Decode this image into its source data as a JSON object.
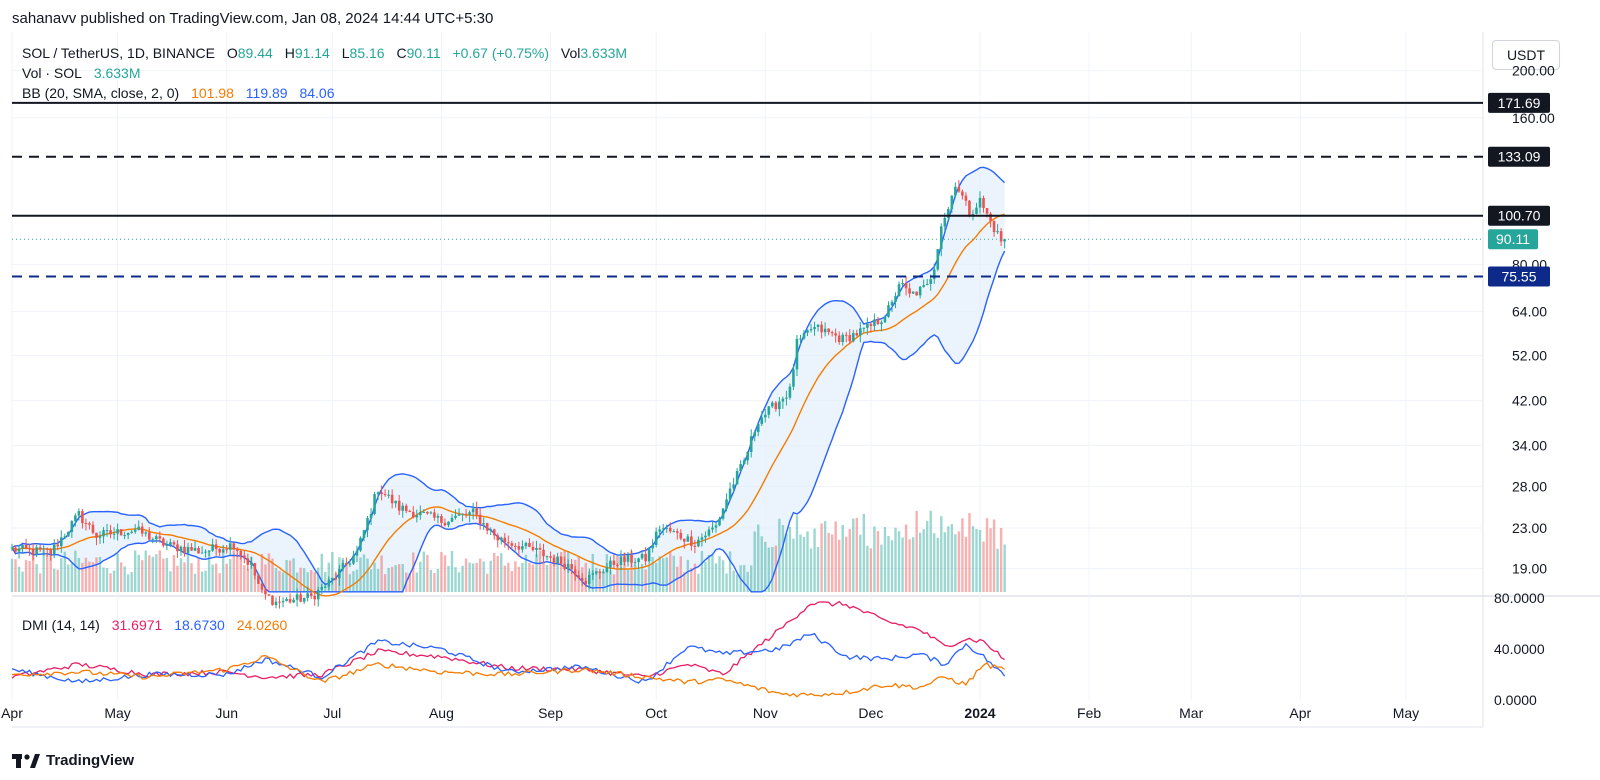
{
  "publisher": "sahanavv published on TradingView.com, Jan 08, 2024 14:44 UTC+5:30",
  "currency": "USDT",
  "footer_brand": "TradingView",
  "legend": {
    "symbol": "SOL / TetherUS, 1D, BINANCE",
    "o_label": "O",
    "o_value": "89.44",
    "h_label": "H",
    "h_value": "91.14",
    "l_label": "L",
    "l_value": "85.16",
    "c_label": "C",
    "c_value": "90.11",
    "change": "+0.67 (+0.75%)",
    "vol_label": "Vol",
    "vol_value": "3.633M",
    "vol_line_label": "Vol · SOL",
    "vol_line_value": "3.633M",
    "bb_label": "BB (20, SMA, close, 2, 0)",
    "bb_basis": "101.98",
    "bb_upper": "119.89",
    "bb_lower": "84.06"
  },
  "dmi_legend": {
    "label": "DMI (14, 14)",
    "plus_di": "31.6971",
    "minus_di": "18.6730",
    "adx": "24.0260"
  },
  "colors": {
    "up": "#26a69a",
    "down": "#ef5350",
    "bb_band": "#2962ff",
    "bb_basis": "#f57c00",
    "bb_fill": "#e3effb",
    "level_black": "#131722",
    "level_navy": "#0d2a8a",
    "dmi_plus": "#e91e63",
    "dmi_minus": "#2962ff",
    "adx": "#f57c00"
  },
  "chart_data": [
    {
      "type": "candlestick",
      "title": "SOL / TetherUS, 1D, BINANCE",
      "y_scale": "log",
      "ylim": [
        17,
        240
      ],
      "x_start": "2023-04-01",
      "xlim": [
        "2023-04-01",
        "2024-05-31"
      ],
      "x_tick_labels": [
        "Apr",
        "May",
        "Jun",
        "Jul",
        "Aug",
        "Sep",
        "Oct",
        "Nov",
        "Dec",
        "2024",
        "Feb",
        "Mar",
        "Apr",
        "May"
      ],
      "x_tick_dates": [
        "2023-04-01",
        "2023-05-01",
        "2023-06-01",
        "2023-07-01",
        "2023-08-01",
        "2023-09-01",
        "2023-10-01",
        "2023-11-01",
        "2023-12-01",
        "2024-01-01",
        "2024-02-01",
        "2024-03-01",
        "2024-04-01",
        "2024-05-01"
      ],
      "y_ticks": [
        19,
        23,
        28,
        34,
        42,
        52,
        64,
        80,
        160,
        200
      ],
      "y_tick_labels": [
        "19.00",
        "23.00",
        "28.00",
        "34.00",
        "42.00",
        "52.00",
        "64.00",
        "80.00",
        "160.00",
        "200.00"
      ],
      "levels": [
        {
          "value": 171.69,
          "label": "171.69",
          "style": "solid",
          "color": "#131722"
        },
        {
          "value": 133.09,
          "label": "133.09",
          "style": "dashed",
          "color": "#131722"
        },
        {
          "value": 100.7,
          "label": "100.70",
          "style": "solid",
          "color": "#131722"
        },
        {
          "value": 75.55,
          "label": "75.55",
          "style": "dashed",
          "color": "#0d2a8a"
        }
      ],
      "last_price": {
        "value": 90.11,
        "label": "90.11"
      },
      "close_keypoints": [
        [
          "2023-04-01",
          20.8
        ],
        [
          "2023-04-12",
          20.5
        ],
        [
          "2023-04-20",
          24.5
        ],
        [
          "2023-04-25",
          22.2
        ],
        [
          "2023-05-06",
          22.8
        ],
        [
          "2023-05-15",
          21.2
        ],
        [
          "2023-05-25",
          20.6
        ],
        [
          "2023-06-03",
          21.3
        ],
        [
          "2023-06-08",
          19.2
        ],
        [
          "2023-06-11",
          16.9
        ],
        [
          "2023-06-15",
          16.2
        ],
        [
          "2023-06-25",
          16.6
        ],
        [
          "2023-07-01",
          18.0
        ],
        [
          "2023-07-08",
          20.5
        ],
        [
          "2023-07-14",
          27.8
        ],
        [
          "2023-07-20",
          25.3
        ],
        [
          "2023-08-01",
          23.8
        ],
        [
          "2023-08-10",
          24.7
        ],
        [
          "2023-08-17",
          21.9
        ],
        [
          "2023-08-28",
          20.6
        ],
        [
          "2023-09-06",
          19.3
        ],
        [
          "2023-09-11",
          18.0
        ],
        [
          "2023-09-20",
          19.7
        ],
        [
          "2023-09-28",
          19.9
        ],
        [
          "2023-10-02",
          23.1
        ],
        [
          "2023-10-12",
          21.5
        ],
        [
          "2023-10-18",
          23.2
        ],
        [
          "2023-10-22",
          27.6
        ],
        [
          "2023-10-26",
          31.5
        ],
        [
          "2023-10-30",
          38.5
        ],
        [
          "2023-11-02",
          40.0
        ],
        [
          "2023-11-05",
          42.0
        ],
        [
          "2023-11-08",
          44.0
        ],
        [
          "2023-11-10",
          55.0
        ],
        [
          "2023-11-12",
          56.5
        ],
        [
          "2023-11-14",
          59.0
        ],
        [
          "2023-11-16",
          59.0
        ],
        [
          "2023-11-18",
          58.2
        ],
        [
          "2023-11-23",
          56.2
        ],
        [
          "2023-11-30",
          59.0
        ],
        [
          "2023-12-04",
          62.0
        ],
        [
          "2023-12-07",
          66.0
        ],
        [
          "2023-12-09",
          73.5
        ],
        [
          "2023-12-12",
          69.0
        ],
        [
          "2023-12-17",
          72.0
        ],
        [
          "2023-12-19",
          79.5
        ],
        [
          "2023-12-21",
          97.0
        ],
        [
          "2023-12-23",
          104.0
        ],
        [
          "2023-12-25",
          118.0
        ],
        [
          "2023-12-27",
          110.0
        ],
        [
          "2023-12-29",
          102.0
        ],
        [
          "2024-01-01",
          108.0
        ],
        [
          "2024-01-03",
          101.0
        ],
        [
          "2024-01-05",
          95.0
        ],
        [
          "2024-01-07",
          89.44
        ],
        [
          "2024-01-08",
          90.11
        ]
      ],
      "volume_note": "Vol · SOL volume bars under the price pane"
    },
    {
      "type": "line",
      "title": "DMI (14, 14)",
      "ylim": [
        0,
        80
      ],
      "y_ticks": [
        0,
        40,
        80
      ],
      "y_tick_labels": [
        "0.0000",
        "40.0000",
        "80.0000"
      ],
      "series": [
        {
          "name": "+DI",
          "color": "#e91e63",
          "keypoints": [
            [
              "2023-04-01",
              18
            ],
            [
              "2023-04-20",
              28
            ],
            [
              "2023-05-10",
              20
            ],
            [
              "2023-06-01",
              22
            ],
            [
              "2023-06-12",
              18
            ],
            [
              "2023-06-28",
              20
            ],
            [
              "2023-07-14",
              38
            ],
            [
              "2023-08-01",
              34
            ],
            [
              "2023-08-20",
              25
            ],
            [
              "2023-09-10",
              24
            ],
            [
              "2023-09-28",
              18
            ],
            [
              "2023-10-10",
              28
            ],
            [
              "2023-10-20",
              20
            ],
            [
              "2023-11-05",
              55
            ],
            [
              "2023-11-14",
              76
            ],
            [
              "2023-11-24",
              75
            ],
            [
              "2023-12-05",
              62
            ],
            [
              "2023-12-15",
              55
            ],
            [
              "2023-12-22",
              42
            ],
            [
              "2023-12-28",
              48
            ],
            [
              "2024-01-02",
              46
            ],
            [
              "2024-01-08",
              31.7
            ]
          ]
        },
        {
          "name": "-DI",
          "color": "#2962ff",
          "keypoints": [
            [
              "2023-04-01",
              24
            ],
            [
              "2023-04-20",
              14
            ],
            [
              "2023-05-10",
              20
            ],
            [
              "2023-06-01",
              20
            ],
            [
              "2023-06-12",
              32
            ],
            [
              "2023-06-28",
              18
            ],
            [
              "2023-07-14",
              46
            ],
            [
              "2023-08-01",
              40
            ],
            [
              "2023-08-20",
              22
            ],
            [
              "2023-09-10",
              26
            ],
            [
              "2023-09-28",
              14
            ],
            [
              "2023-10-10",
              42
            ],
            [
              "2023-10-20",
              36
            ],
            [
              "2023-11-05",
              40
            ],
            [
              "2023-11-14",
              52
            ],
            [
              "2023-11-24",
              34
            ],
            [
              "2023-12-05",
              32
            ],
            [
              "2023-12-15",
              36
            ],
            [
              "2023-12-22",
              28
            ],
            [
              "2023-12-28",
              44
            ],
            [
              "2024-01-02",
              34
            ],
            [
              "2024-01-08",
              18.7
            ]
          ]
        },
        {
          "name": "ADX",
          "color": "#f57c00",
          "keypoints": [
            [
              "2023-04-01",
              20
            ],
            [
              "2023-04-20",
              22
            ],
            [
              "2023-05-10",
              18
            ],
            [
              "2023-06-01",
              24
            ],
            [
              "2023-06-12",
              34
            ],
            [
              "2023-06-28",
              14
            ],
            [
              "2023-07-14",
              28
            ],
            [
              "2023-08-01",
              22
            ],
            [
              "2023-08-20",
              20
            ],
            [
              "2023-09-10",
              24
            ],
            [
              "2023-09-28",
              18
            ],
            [
              "2023-10-10",
              14
            ],
            [
              "2023-10-20",
              16
            ],
            [
              "2023-11-05",
              5
            ],
            [
              "2023-11-14",
              4
            ],
            [
              "2023-11-24",
              6
            ],
            [
              "2023-12-05",
              12
            ],
            [
              "2023-12-15",
              10
            ],
            [
              "2023-12-22",
              18
            ],
            [
              "2023-12-28",
              12
            ],
            [
              "2024-01-02",
              28
            ],
            [
              "2024-01-08",
              24.0
            ]
          ]
        }
      ]
    }
  ]
}
